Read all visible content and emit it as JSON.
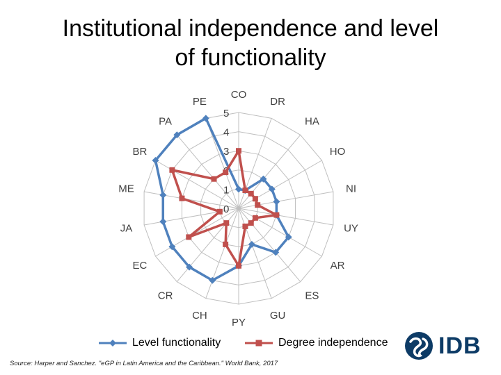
{
  "title_line1": "Institutional independence and level",
  "title_line2": "of functionality",
  "source": "Source: Harper and Sanchez. \"eGP in Latin America and the Caribbean.\" World Bank, 2017",
  "logo": {
    "text": "IDB",
    "color": "#0d3b66"
  },
  "chart_data": {
    "type": "radar",
    "categories": [
      "CO",
      "DR",
      "HA",
      "HO",
      "NI",
      "UY",
      "AR",
      "ES",
      "GU",
      "PY",
      "CH",
      "CR",
      "EC",
      "JA",
      "ME",
      "BR",
      "PA",
      "PE"
    ],
    "rlim": [
      0,
      5
    ],
    "ticks": [
      "0",
      "1",
      "2",
      "3",
      "4",
      "5"
    ],
    "series": [
      {
        "name": "Level functionality",
        "color": "#4f81bd",
        "marker": "diamond",
        "values": [
          1,
          1,
          2,
          2,
          2,
          2,
          3,
          3,
          2,
          3,
          4,
          4,
          4,
          4,
          4,
          5,
          5,
          5
        ]
      },
      {
        "name": "Degree independence",
        "color": "#c0504d",
        "marker": "square",
        "values": [
          3,
          1,
          1,
          1,
          1,
          2,
          1,
          1,
          1,
          3,
          2,
          1,
          3,
          1,
          3,
          4,
          2,
          2
        ]
      }
    ],
    "grid": true,
    "legend_position": "bottom"
  }
}
